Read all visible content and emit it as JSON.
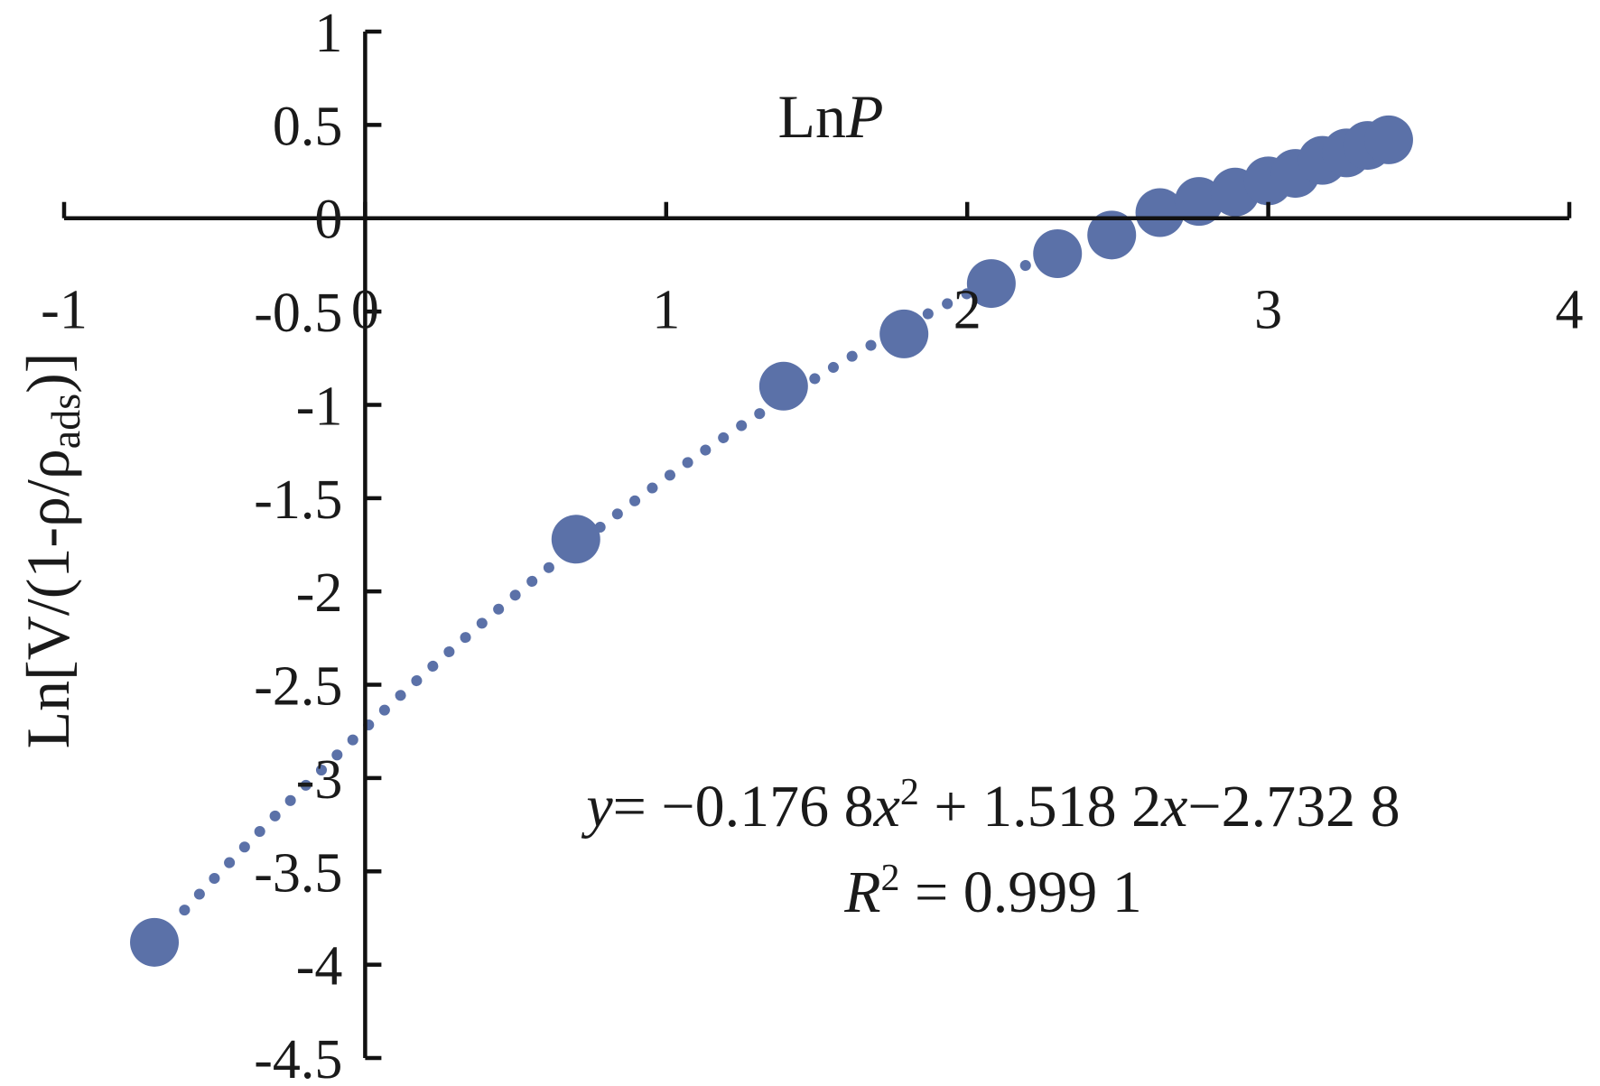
{
  "chart_data": {
    "type": "scatter",
    "x_axis": {
      "title_prefix": "Ln",
      "title_var": "P",
      "min": -1,
      "max": 4,
      "ticks": [
        -1,
        0,
        1,
        2,
        3,
        4
      ],
      "tick_labels": [
        "-1",
        "0",
        "1",
        "2",
        "3",
        "4"
      ]
    },
    "y_axis": {
      "title_main": "Ln[V/(1-ρ/ρ",
      "title_sub": "ads",
      "title_end": ")]",
      "min": -4.5,
      "max": 1,
      "ticks": [
        1,
        0.5,
        0,
        -0.5,
        -1,
        -1.5,
        -2,
        -2.5,
        -3,
        -3.5,
        -4,
        -4.5
      ],
      "tick_labels": [
        "1",
        "0.5",
        "0",
        "-0.5",
        "-1",
        "-1.5",
        "-2",
        "-2.5",
        "-3",
        "-3.5",
        "-4",
        "-4.5"
      ]
    },
    "series": [
      {
        "x": [
          -0.7,
          0.7,
          1.39,
          1.79,
          2.08,
          2.3,
          2.48,
          2.64,
          2.77,
          2.89,
          3.0,
          3.09,
          3.18,
          3.26,
          3.33,
          3.4
        ],
        "y": [
          -3.88,
          -1.72,
          -0.9,
          -0.62,
          -0.35,
          -0.19,
          -0.09,
          0.03,
          0.09,
          0.14,
          0.2,
          0.24,
          0.31,
          0.35,
          0.39,
          0.42
        ]
      }
    ],
    "trendline": {
      "type": "polynomial",
      "coefficients": [
        -0.1768,
        1.5182,
        -2.7328
      ],
      "x_range": [
        -0.6,
        2.2
      ]
    },
    "equation": {
      "line1": {
        "y": "y",
        "eq": "= −0.176 8",
        "x1": "x",
        "sup": "2",
        "plus": " + 1.518 2",
        "x2": "x",
        "rest": "−2.732 8"
      },
      "line2": {
        "r": "R",
        "sup": "2",
        "rest": " = 0.999 1"
      }
    },
    "colors": {
      "marker": "#5b71a8",
      "axis": "#111111",
      "text": "#1a1a1a"
    }
  }
}
